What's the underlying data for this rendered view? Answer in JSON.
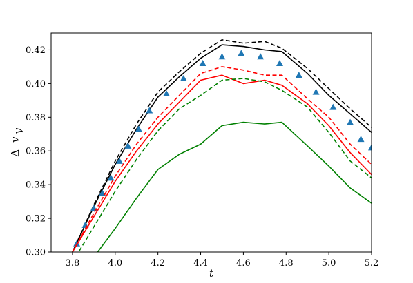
{
  "chart_data": {
    "type": "line",
    "xlabel": "t",
    "ylabel": {
      "symbol": "Δ",
      "var": "v",
      "sub": "y"
    },
    "xlim": [
      3.7,
      5.2
    ],
    "ylim": [
      0.3,
      0.43
    ],
    "xticks": [
      3.8,
      4.0,
      4.2,
      4.4,
      4.6,
      4.8,
      5.0,
      5.2
    ],
    "xtick_labels": [
      "3.8",
      "4.0",
      "4.2",
      "4.4",
      "4.6",
      "4.8",
      "5.0",
      "5.2"
    ],
    "yticks": [
      0.3,
      0.32,
      0.34,
      0.36,
      0.38,
      0.4,
      0.42
    ],
    "ytick_labels": [
      "0.30",
      "0.32",
      "0.34",
      "0.36",
      "0.38",
      "0.40",
      "0.42"
    ],
    "grid": false,
    "legend": false,
    "series": [
      {
        "style": "dashed",
        "color": "#000000",
        "marker": "none",
        "x": [
          3.8,
          3.9,
          4.0,
          4.1,
          4.2,
          4.3,
          4.4,
          4.5,
          4.6,
          4.7,
          4.78,
          4.9,
          5.0,
          5.1,
          5.2
        ],
        "y": [
          0.3,
          0.328,
          0.354,
          0.376,
          0.395,
          0.407,
          0.418,
          0.426,
          0.424,
          0.425,
          0.421,
          0.409,
          0.397,
          0.385,
          0.374
        ]
      },
      {
        "style": "solid",
        "color": "#000000",
        "marker": "none",
        "x": [
          3.8,
          3.9,
          4.0,
          4.1,
          4.2,
          4.3,
          4.4,
          4.5,
          4.6,
          4.7,
          4.78,
          4.9,
          5.0,
          5.1,
          5.2
        ],
        "y": [
          0.3,
          0.327,
          0.352,
          0.373,
          0.392,
          0.404,
          0.415,
          0.423,
          0.422,
          0.42,
          0.419,
          0.406,
          0.393,
          0.382,
          0.371
        ]
      },
      {
        "style": "none",
        "color": "#1f77b4",
        "marker": "triangle",
        "x": [
          3.82,
          3.86,
          3.9,
          3.94,
          3.98,
          4.02,
          4.06,
          4.11,
          4.16,
          4.24,
          4.32,
          4.41,
          4.5,
          4.59,
          4.68,
          4.77,
          4.86,
          4.94,
          5.02,
          5.1,
          5.15,
          5.2
        ],
        "y": [
          0.305,
          0.316,
          0.326,
          0.335,
          0.344,
          0.354,
          0.363,
          0.373,
          0.384,
          0.394,
          0.403,
          0.412,
          0.416,
          0.418,
          0.416,
          0.412,
          0.405,
          0.395,
          0.386,
          0.377,
          0.367,
          0.362
        ]
      },
      {
        "style": "dashed",
        "color": "#ff0000",
        "marker": "none",
        "x": [
          3.8,
          3.9,
          4.0,
          4.1,
          4.2,
          4.3,
          4.4,
          4.5,
          4.6,
          4.7,
          4.78,
          4.9,
          5.0,
          5.1,
          5.2
        ],
        "y": [
          0.3,
          0.323,
          0.345,
          0.364,
          0.38,
          0.393,
          0.406,
          0.41,
          0.408,
          0.405,
          0.405,
          0.391,
          0.38,
          0.364,
          0.352
        ]
      },
      {
        "style": "solid",
        "color": "#ff0000",
        "marker": "none",
        "x": [
          3.8,
          3.9,
          4.0,
          4.1,
          4.2,
          4.3,
          4.4,
          4.5,
          4.6,
          4.7,
          4.78,
          4.9,
          5.0,
          5.1,
          5.2
        ],
        "y": [
          0.3,
          0.321,
          0.342,
          0.36,
          0.376,
          0.389,
          0.402,
          0.405,
          0.4,
          0.402,
          0.399,
          0.388,
          0.375,
          0.359,
          0.346
        ]
      },
      {
        "style": "dashed",
        "color": "#008000",
        "marker": "none",
        "x": [
          3.8,
          3.9,
          4.0,
          4.1,
          4.2,
          4.3,
          4.4,
          4.5,
          4.6,
          4.7,
          4.78,
          4.9,
          5.0,
          5.1,
          5.2
        ],
        "y": [
          0.294,
          0.315,
          0.336,
          0.355,
          0.372,
          0.385,
          0.393,
          0.402,
          0.403,
          0.401,
          0.396,
          0.386,
          0.371,
          0.354,
          0.344
        ]
      },
      {
        "style": "solid",
        "color": "#008000",
        "marker": "none",
        "x": [
          3.8,
          3.9,
          4.0,
          4.1,
          4.2,
          4.3,
          4.4,
          4.5,
          4.6,
          4.7,
          4.78,
          4.9,
          5.0,
          5.1,
          5.2
        ],
        "y": [
          0.28,
          0.297,
          0.314,
          0.332,
          0.349,
          0.358,
          0.364,
          0.375,
          0.377,
          0.376,
          0.377,
          0.363,
          0.351,
          0.338,
          0.329
        ]
      }
    ]
  }
}
